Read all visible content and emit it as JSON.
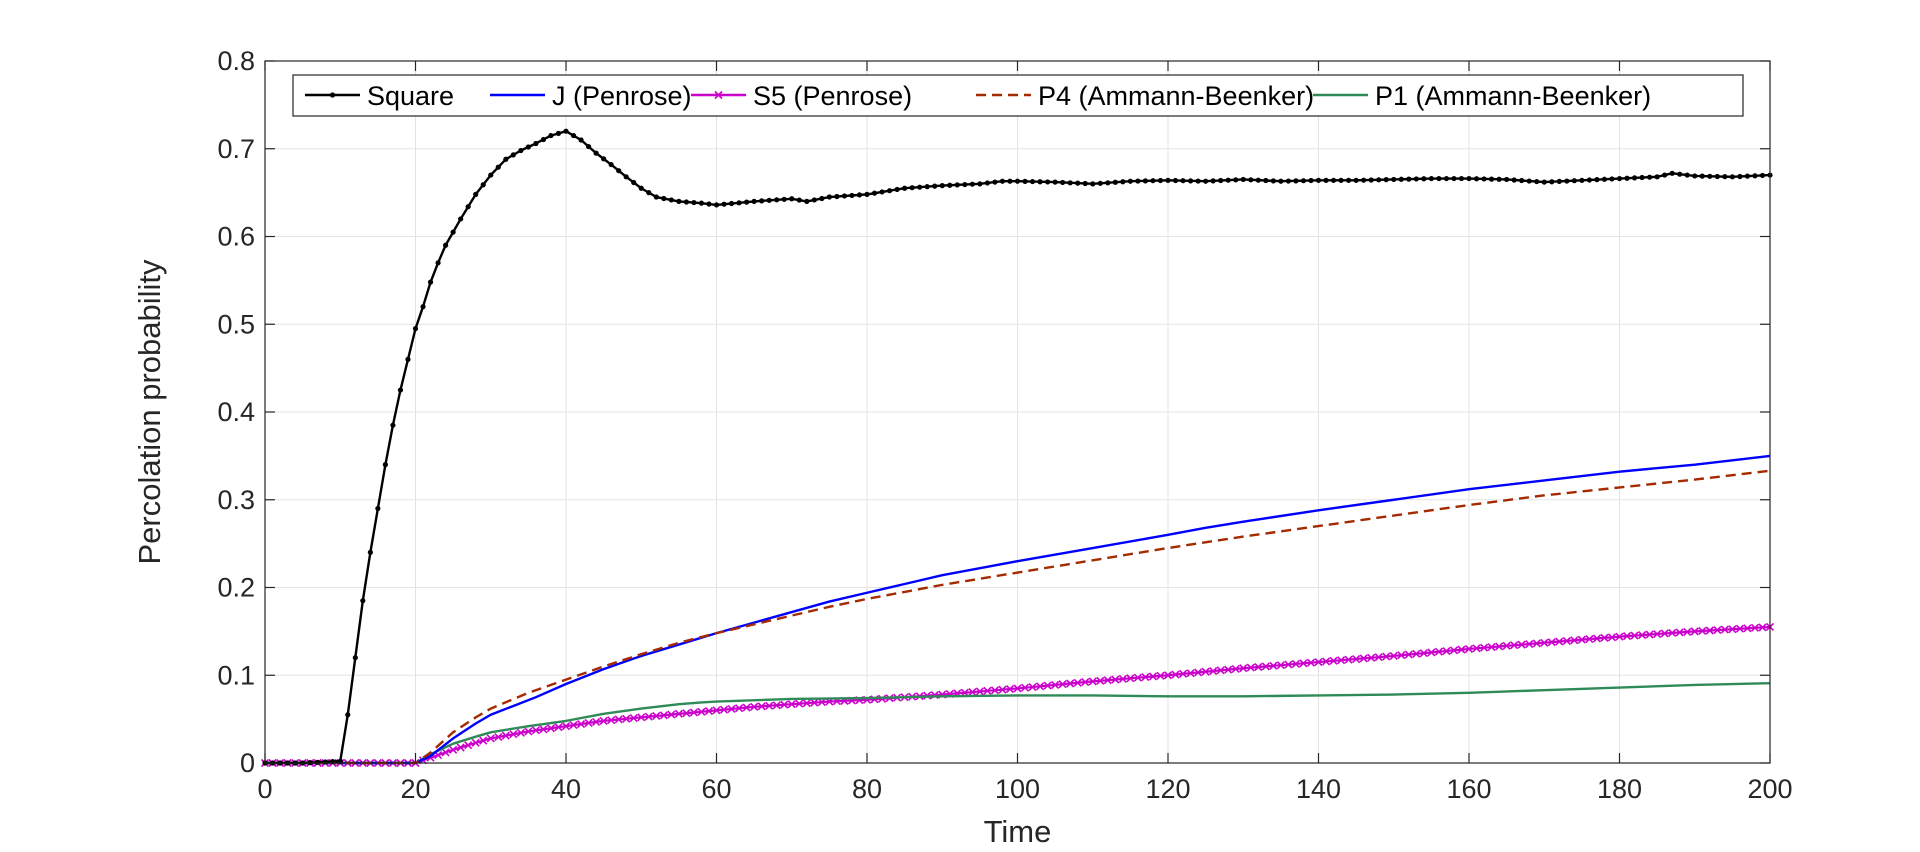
{
  "chart_data": {
    "type": "line",
    "title": "",
    "xlabel": "Time",
    "ylabel": "Percolation probability",
    "xlim": [
      0,
      200
    ],
    "ylim": [
      0,
      0.8
    ],
    "xticks": [
      0,
      20,
      40,
      60,
      80,
      100,
      120,
      140,
      160,
      180,
      200
    ],
    "yticks": [
      0,
      0.1,
      0.2,
      0.3,
      0.4,
      0.5,
      0.6,
      0.7,
      0.8
    ],
    "ytick_labels": [
      "0",
      "0.1",
      "0.2",
      "0.3",
      "0.4",
      "0.5",
      "0.6",
      "0.7",
      "0.8"
    ],
    "grid": true,
    "legend_position": "top",
    "legend_orientation": "horizontal",
    "series": [
      {
        "name": "Square",
        "color": "#000000",
        "style": "solid",
        "marker": "dot",
        "points": [
          [
            0,
            0
          ],
          [
            5,
            0
          ],
          [
            10,
            0.002
          ],
          [
            11,
            0.055
          ],
          [
            12,
            0.12
          ],
          [
            13,
            0.185
          ],
          [
            14,
            0.24
          ],
          [
            15,
            0.29
          ],
          [
            16,
            0.34
          ],
          [
            17,
            0.385
          ],
          [
            18,
            0.425
          ],
          [
            19,
            0.46
          ],
          [
            20,
            0.495
          ],
          [
            21,
            0.52
          ],
          [
            22,
            0.548
          ],
          [
            23,
            0.57
          ],
          [
            24,
            0.59
          ],
          [
            26,
            0.62
          ],
          [
            28,
            0.648
          ],
          [
            30,
            0.67
          ],
          [
            32,
            0.688
          ],
          [
            34,
            0.698
          ],
          [
            36,
            0.706
          ],
          [
            38,
            0.715
          ],
          [
            40,
            0.72
          ],
          [
            42,
            0.71
          ],
          [
            44,
            0.695
          ],
          [
            46,
            0.682
          ],
          [
            48,
            0.668
          ],
          [
            50,
            0.655
          ],
          [
            52,
            0.645
          ],
          [
            55,
            0.64
          ],
          [
            58,
            0.638
          ],
          [
            60,
            0.636
          ],
          [
            65,
            0.64
          ],
          [
            70,
            0.643
          ],
          [
            72,
            0.64
          ],
          [
            75,
            0.645
          ],
          [
            80,
            0.648
          ],
          [
            85,
            0.655
          ],
          [
            90,
            0.658
          ],
          [
            95,
            0.66
          ],
          [
            98,
            0.663
          ],
          [
            100,
            0.663
          ],
          [
            105,
            0.662
          ],
          [
            110,
            0.66
          ],
          [
            115,
            0.663
          ],
          [
            120,
            0.664
          ],
          [
            125,
            0.663
          ],
          [
            130,
            0.665
          ],
          [
            135,
            0.663
          ],
          [
            140,
            0.664
          ],
          [
            145,
            0.664
          ],
          [
            150,
            0.665
          ],
          [
            155,
            0.666
          ],
          [
            160,
            0.666
          ],
          [
            165,
            0.665
          ],
          [
            170,
            0.662
          ],
          [
            175,
            0.664
          ],
          [
            180,
            0.666
          ],
          [
            185,
            0.668
          ],
          [
            187,
            0.672
          ],
          [
            190,
            0.669
          ],
          [
            195,
            0.668
          ],
          [
            200,
            0.67
          ]
        ]
      },
      {
        "name": "J (Penrose)",
        "color": "#0000ff",
        "style": "solid",
        "marker": "none",
        "points": [
          [
            0,
            0
          ],
          [
            20,
            0
          ],
          [
            22,
            0.008
          ],
          [
            25,
            0.028
          ],
          [
            28,
            0.045
          ],
          [
            30,
            0.055
          ],
          [
            33,
            0.065
          ],
          [
            36,
            0.075
          ],
          [
            40,
            0.09
          ],
          [
            45,
            0.107
          ],
          [
            50,
            0.122
          ],
          [
            55,
            0.135
          ],
          [
            60,
            0.148
          ],
          [
            65,
            0.16
          ],
          [
            70,
            0.172
          ],
          [
            75,
            0.184
          ],
          [
            80,
            0.194
          ],
          [
            85,
            0.204
          ],
          [
            90,
            0.214
          ],
          [
            95,
            0.222
          ],
          [
            100,
            0.23
          ],
          [
            110,
            0.245
          ],
          [
            120,
            0.26
          ],
          [
            125,
            0.268
          ],
          [
            130,
            0.275
          ],
          [
            140,
            0.288
          ],
          [
            150,
            0.3
          ],
          [
            160,
            0.312
          ],
          [
            170,
            0.322
          ],
          [
            180,
            0.332
          ],
          [
            190,
            0.34
          ],
          [
            200,
            0.35
          ]
        ]
      },
      {
        "name": "S5 (Penrose)",
        "color": "#cc00cc",
        "style": "solid",
        "marker": "x",
        "points": [
          [
            0,
            0
          ],
          [
            20,
            0
          ],
          [
            22,
            0.006
          ],
          [
            25,
            0.015
          ],
          [
            28,
            0.023
          ],
          [
            30,
            0.028
          ],
          [
            35,
            0.036
          ],
          [
            40,
            0.042
          ],
          [
            45,
            0.048
          ],
          [
            50,
            0.052
          ],
          [
            55,
            0.056
          ],
          [
            60,
            0.06
          ],
          [
            65,
            0.064
          ],
          [
            70,
            0.067
          ],
          [
            75,
            0.07
          ],
          [
            80,
            0.072
          ],
          [
            85,
            0.075
          ],
          [
            90,
            0.078
          ],
          [
            100,
            0.085
          ],
          [
            110,
            0.093
          ],
          [
            120,
            0.1
          ],
          [
            130,
            0.108
          ],
          [
            140,
            0.115
          ],
          [
            150,
            0.122
          ],
          [
            160,
            0.13
          ],
          [
            170,
            0.137
          ],
          [
            180,
            0.144
          ],
          [
            190,
            0.15
          ],
          [
            200,
            0.155
          ]
        ]
      },
      {
        "name": "P4 (Ammann-Beenker)",
        "color": "#a52a00",
        "style": "dashed",
        "marker": "none",
        "points": [
          [
            0,
            0
          ],
          [
            20,
            0
          ],
          [
            22,
            0.012
          ],
          [
            25,
            0.035
          ],
          [
            28,
            0.052
          ],
          [
            30,
            0.062
          ],
          [
            35,
            0.08
          ],
          [
            40,
            0.095
          ],
          [
            45,
            0.11
          ],
          [
            50,
            0.124
          ],
          [
            55,
            0.137
          ],
          [
            60,
            0.148
          ],
          [
            65,
            0.158
          ],
          [
            70,
            0.168
          ],
          [
            75,
            0.178
          ],
          [
            80,
            0.187
          ],
          [
            85,
            0.195
          ],
          [
            90,
            0.203
          ],
          [
            95,
            0.21
          ],
          [
            100,
            0.217
          ],
          [
            110,
            0.231
          ],
          [
            120,
            0.245
          ],
          [
            130,
            0.258
          ],
          [
            140,
            0.27
          ],
          [
            150,
            0.282
          ],
          [
            160,
            0.294
          ],
          [
            170,
            0.305
          ],
          [
            180,
            0.314
          ],
          [
            190,
            0.323
          ],
          [
            200,
            0.333
          ]
        ]
      },
      {
        "name": "P1 (Ammann-Beenker)",
        "color": "#2e8b57",
        "style": "solid",
        "marker": "none",
        "points": [
          [
            0,
            0
          ],
          [
            20,
            0
          ],
          [
            22,
            0.01
          ],
          [
            25,
            0.022
          ],
          [
            28,
            0.03
          ],
          [
            30,
            0.035
          ],
          [
            35,
            0.042
          ],
          [
            40,
            0.048
          ],
          [
            45,
            0.056
          ],
          [
            50,
            0.062
          ],
          [
            55,
            0.067
          ],
          [
            58,
            0.069
          ],
          [
            60,
            0.07
          ],
          [
            70,
            0.073
          ],
          [
            80,
            0.074
          ],
          [
            90,
            0.076
          ],
          [
            100,
            0.077
          ],
          [
            110,
            0.077
          ],
          [
            120,
            0.076
          ],
          [
            130,
            0.076
          ],
          [
            140,
            0.077
          ],
          [
            150,
            0.078
          ],
          [
            160,
            0.08
          ],
          [
            170,
            0.083
          ],
          [
            180,
            0.086
          ],
          [
            190,
            0.089
          ],
          [
            200,
            0.091
          ]
        ]
      }
    ]
  }
}
